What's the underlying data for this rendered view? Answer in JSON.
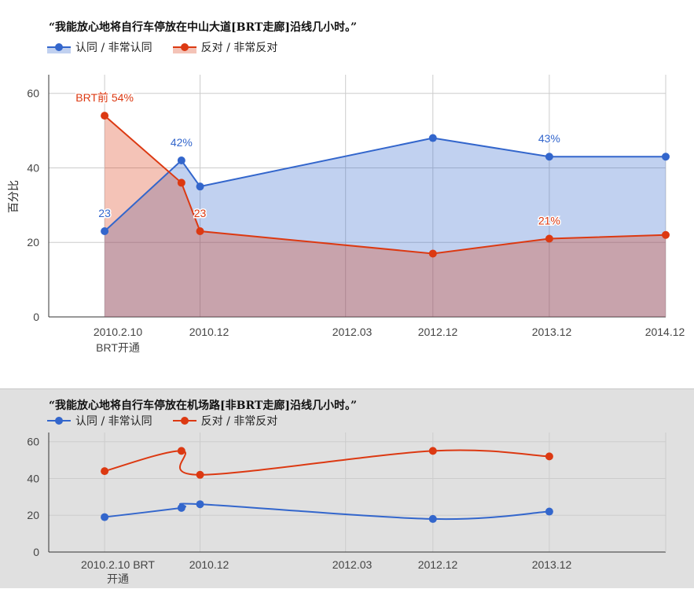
{
  "colors": {
    "agree": "#3366cc",
    "oppose": "#dc3912",
    "agree_fill": "rgba(51,102,204,0.30)",
    "oppose_fill": "rgba(220,57,18,0.30)",
    "grid": "#cccccc",
    "bottom_bg": "#e0e0e0"
  },
  "legend": {
    "agree": "认同 / 非常认同",
    "oppose": "反对 / 非常反对"
  },
  "chart_data": [
    {
      "type": "area",
      "title": "“我能放心地将自行车停放在中山大道[BRT走廊]沿线几小时。”",
      "ylabel": "百分比",
      "ylim": [
        0,
        65
      ],
      "yticks": [
        0,
        20,
        40,
        60
      ],
      "grid": true,
      "legend_position": "top-left",
      "x_tick_labels": [
        "2010.2.10",
        "BRT开通",
        "2010.12",
        "2012.03",
        "2012.12",
        "2013.12",
        "2014.12"
      ],
      "series": [
        {
          "name": "认同 / 非常认同",
          "x": [
            2010.1,
            2010.76,
            2010.92,
            2012.92,
            2013.92,
            2014.92
          ],
          "values": [
            23,
            42,
            35,
            48,
            43,
            43
          ]
        },
        {
          "name": "反对 / 非常反对",
          "x": [
            2010.1,
            2010.76,
            2010.92,
            2012.92,
            2013.92,
            2014.92
          ],
          "values": [
            54,
            36,
            23,
            17,
            21,
            22
          ]
        }
      ],
      "annotations": [
        {
          "series": 1,
          "index": 0,
          "text": "BRT前 54%"
        },
        {
          "series": 0,
          "index": 0,
          "text": "23"
        },
        {
          "series": 0,
          "index": 1,
          "text": "42%"
        },
        {
          "series": 1,
          "index": 2,
          "text": "23"
        },
        {
          "series": 0,
          "index": 4,
          "text": "43%"
        },
        {
          "series": 1,
          "index": 4,
          "text": "21%"
        }
      ]
    },
    {
      "type": "line",
      "title": "“我能放心地将自行车停放在机场路[非BRT走廊]沿线几小时。”",
      "ylim": [
        0,
        65
      ],
      "yticks": [
        0,
        20,
        40,
        60
      ],
      "grid": true,
      "legend_position": "top-left",
      "x_tick_labels": [
        "2010.2.10 BRT",
        "开通",
        "2010.12",
        "2012.03",
        "2012.12",
        "2013.12"
      ],
      "series": [
        {
          "name": "认同 / 非常认同",
          "x": [
            2010.1,
            2010.76,
            2010.92,
            2012.92,
            2013.92
          ],
          "values": [
            19,
            24,
            26,
            18,
            22
          ]
        },
        {
          "name": "反对 / 非常反对",
          "x": [
            2010.1,
            2010.76,
            2010.92,
            2012.92,
            2013.92
          ],
          "values": [
            44,
            55,
            42,
            55,
            52
          ]
        }
      ]
    }
  ]
}
